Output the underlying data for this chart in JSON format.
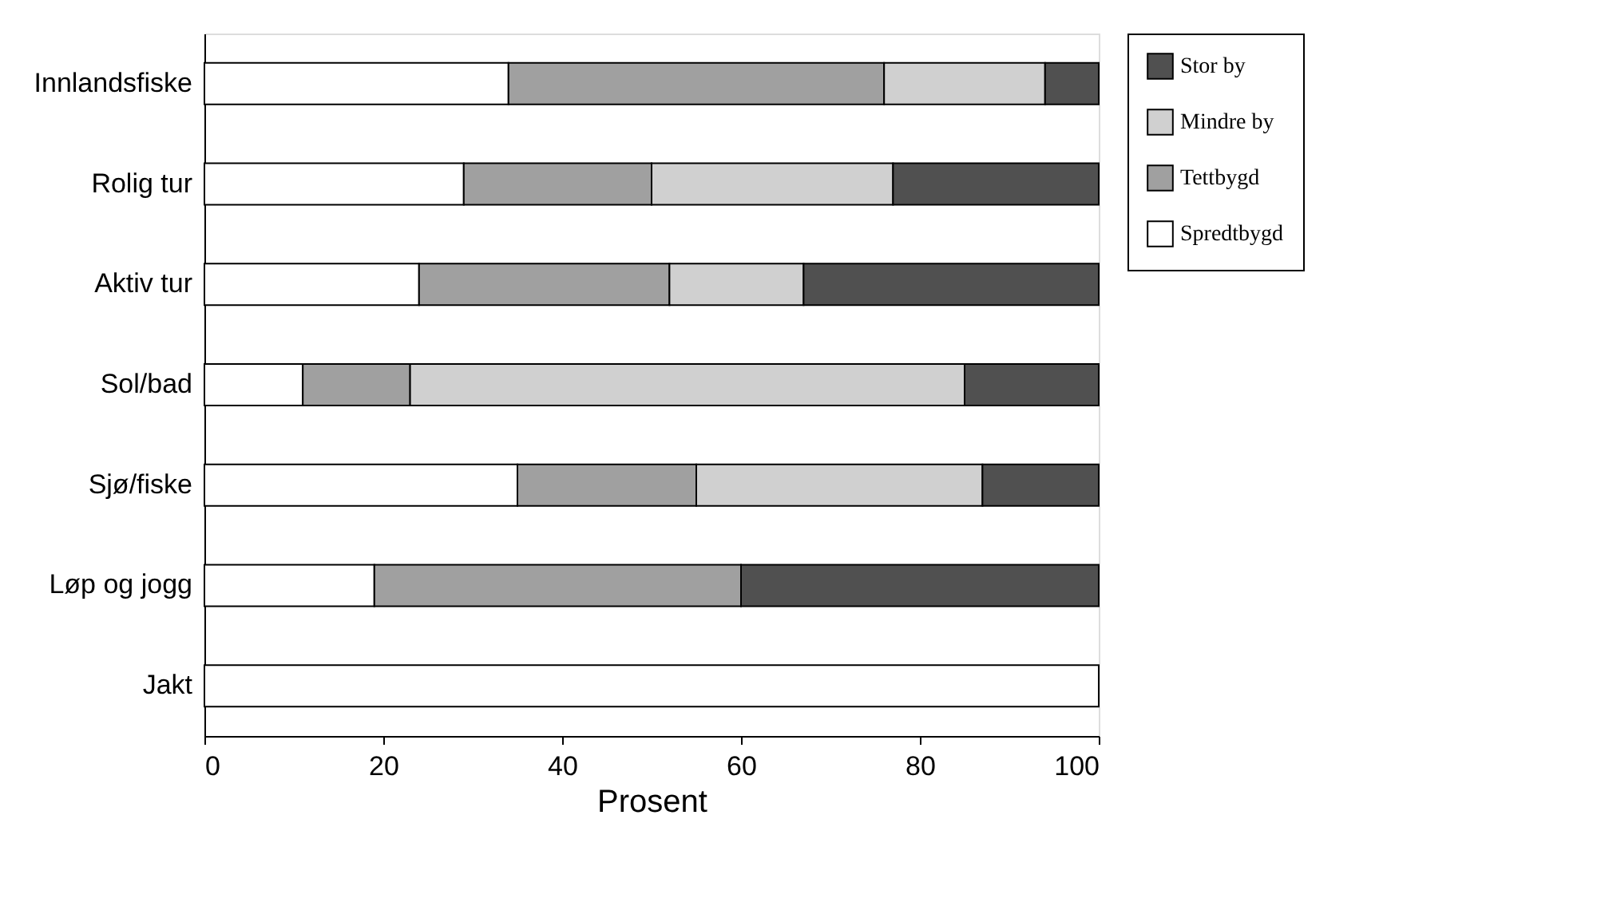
{
  "chart_data": {
    "type": "bar",
    "orientation": "horizontal",
    "stacked": true,
    "xlabel": "Prosent",
    "categories": [
      "Innlandsfiske",
      "Rolig tur",
      "Aktiv tur",
      "Sol/bad",
      "Sjø/fiske",
      "Løp og jogg",
      "Jakt"
    ],
    "series": [
      {
        "name": "Spredtbygd",
        "color": "#ffffff",
        "values": [
          34,
          29,
          24,
          11,
          35,
          19,
          100
        ]
      },
      {
        "name": "Tettbygd",
        "color": "#a0a0a0",
        "values": [
          42,
          21,
          28,
          12,
          20,
          41,
          null
        ]
      },
      {
        "name": "Mindre by",
        "color": "#d0d0d0",
        "values": [
          18,
          27,
          15,
          62,
          32,
          null,
          null
        ]
      },
      {
        "name": "Stor by",
        "color": "#505050",
        "values": [
          6,
          23,
          33,
          15,
          13,
          40,
          null
        ]
      }
    ],
    "xlim": [
      0,
      100
    ],
    "xticks": [
      0,
      20,
      40,
      60,
      80,
      100
    ],
    "grid": false,
    "legend": "right"
  }
}
